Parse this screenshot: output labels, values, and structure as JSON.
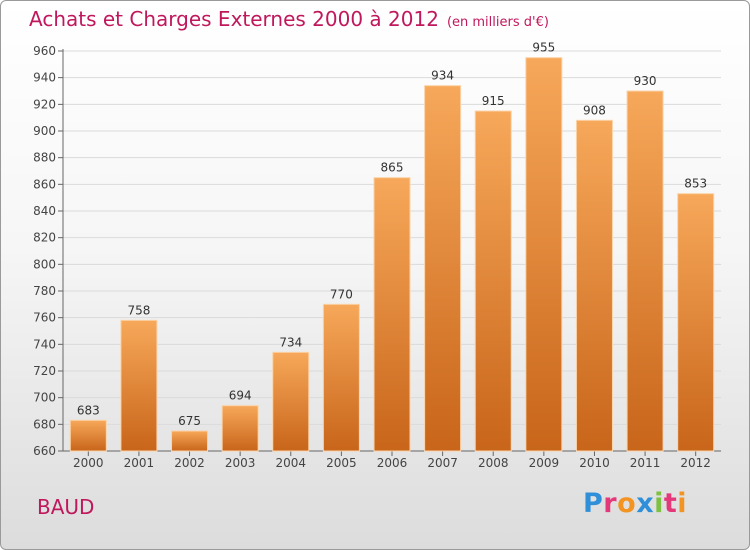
{
  "header": {
    "title": "Achats et Charges Externes 2000 à 2012",
    "subtitle": "(en milliers d'€)"
  },
  "footer": {
    "commune": "BAUD",
    "logo_text": "Proxiti"
  },
  "colors": {
    "title": "#c0185c",
    "bar_top": "#f7a85a",
    "bar_bottom": "#c8651a",
    "logo": [
      "#2f8fd8",
      "#e5387a",
      "#f29322",
      "#2f8fd8",
      "#7cc142",
      "#e5387a",
      "#f29322"
    ]
  },
  "chart_data": {
    "type": "bar",
    "categories": [
      "2000",
      "2001",
      "2002",
      "2003",
      "2004",
      "2005",
      "2006",
      "2007",
      "2008",
      "2009",
      "2010",
      "2011",
      "2012"
    ],
    "values": [
      683,
      758,
      675,
      694,
      734,
      770,
      865,
      934,
      915,
      955,
      908,
      930,
      853
    ],
    "ylim": [
      660,
      960
    ],
    "yticks": [
      660,
      680,
      700,
      720,
      740,
      760,
      780,
      800,
      820,
      840,
      860,
      880,
      900,
      920,
      940,
      960
    ],
    "grid": true,
    "xlabel": "",
    "ylabel": ""
  }
}
